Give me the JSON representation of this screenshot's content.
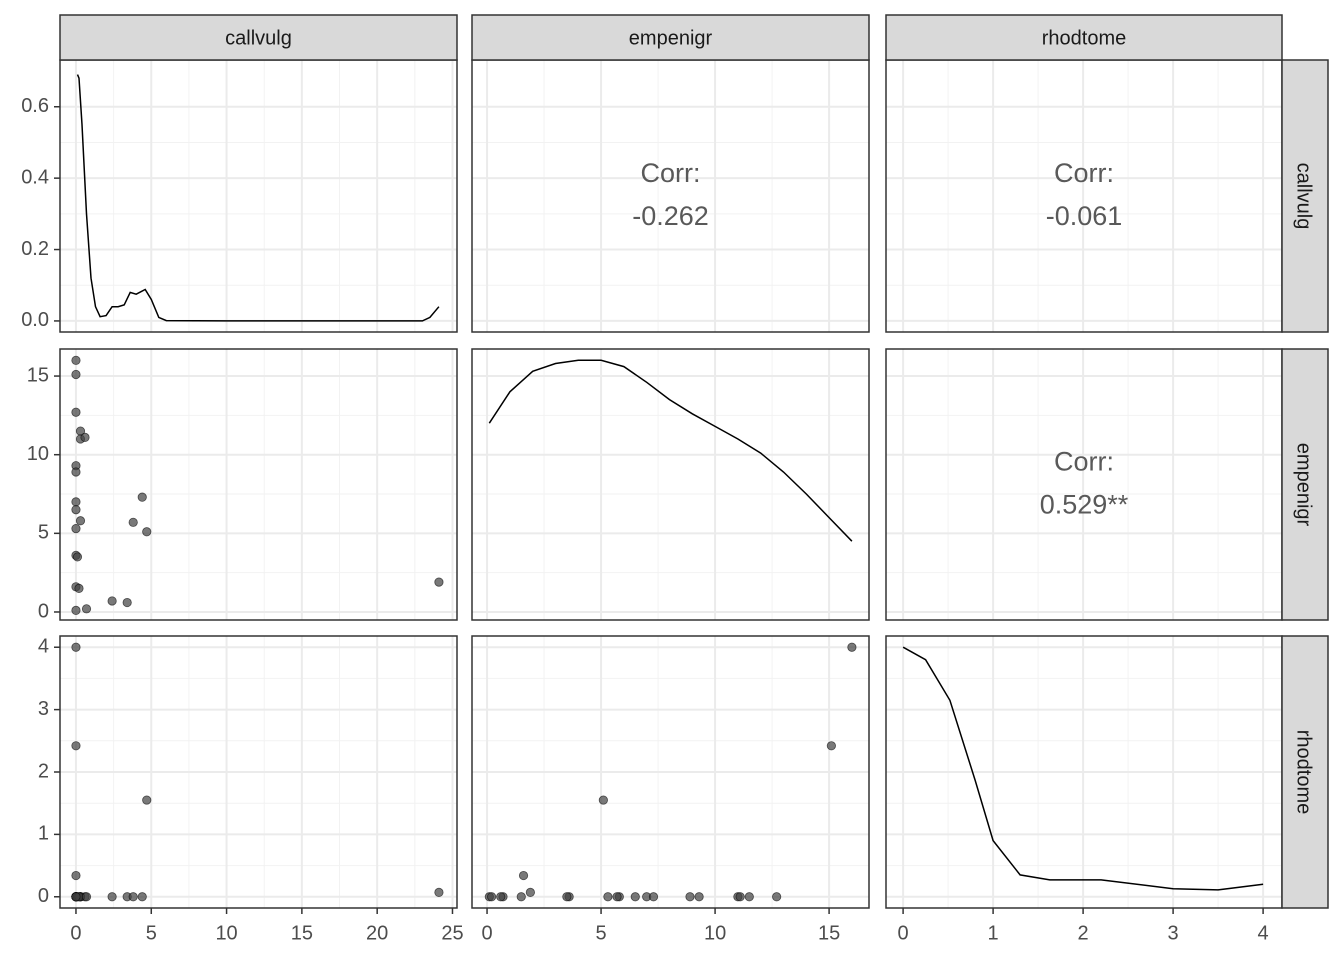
{
  "chart_data": {
    "type": "pairs",
    "variables": [
      "callvulg",
      "empenigr",
      "rhodtome"
    ],
    "observations": {
      "callvulg": [
        0,
        0,
        0,
        0.3,
        0.3,
        0.6,
        0,
        0,
        0,
        0,
        0.3,
        0,
        0,
        0.1,
        0,
        0.2,
        0,
        0.7,
        2.4,
        3.4,
        3.8,
        4.4,
        4.7,
        24.1
      ],
      "empenigr": [
        16,
        15.1,
        12.7,
        11.5,
        11.0,
        11.1,
        9.3,
        8.9,
        7.0,
        6.5,
        5.8,
        5.3,
        3.6,
        3.5,
        1.6,
        1.5,
        0.1,
        0.2,
        0.7,
        0.6,
        5.7,
        7.3,
        5.1,
        1.9
      ],
      "rhodtome": [
        4,
        2.42,
        0,
        0,
        0,
        0,
        0,
        0,
        0,
        0,
        0,
        0,
        0,
        0,
        0.34,
        0,
        0,
        0,
        0,
        0,
        0,
        0,
        1.55,
        0.07
      ]
    },
    "densities": {
      "callvulg": {
        "x": [
          0.1,
          0.2,
          0.4,
          0.7,
          1.0,
          1.3,
          1.6,
          2.0,
          2.4,
          2.8,
          3.2,
          3.6,
          4.0,
          4.6,
          5.0,
          5.5,
          6,
          10,
          20,
          23,
          23.5,
          24.1
        ],
        "y": [
          0.69,
          0.68,
          0.55,
          0.3,
          0.12,
          0.04,
          0.012,
          0.015,
          0.04,
          0.04,
          0.045,
          0.08,
          0.075,
          0.088,
          0.06,
          0.01,
          0.001,
          0,
          0,
          0,
          0.01,
          0.04
        ]
      },
      "empenigr": {
        "x": [
          0.1,
          1,
          2,
          3,
          4,
          5,
          6,
          7,
          8,
          9,
          10,
          11,
          12,
          13,
          14,
          15,
          16
        ],
        "y": [
          12.0,
          14.0,
          15.3,
          15.8,
          16.0,
          16.0,
          15.6,
          14.6,
          13.5,
          12.6,
          11.8,
          11.0,
          10.1,
          8.9,
          7.5,
          6.0,
          4.5
        ]
      },
      "rhodtome": {
        "x": [
          0,
          0.25,
          0.52,
          0.8,
          1.0,
          1.3,
          1.63,
          2.2,
          3.0,
          3.5,
          4.0
        ],
        "y": [
          4.0,
          3.8,
          3.15,
          1.87,
          0.9,
          0.35,
          0.27,
          0.27,
          0.13,
          0.11,
          0.2
        ]
      }
    },
    "correlations": [
      {
        "x": "empenigr",
        "y": "callvulg",
        "label": "Corr:",
        "value": "-0.262"
      },
      {
        "x": "rhodtome",
        "y": "callvulg",
        "label": "Corr:",
        "value": "-0.061"
      },
      {
        "x": "rhodtome",
        "y": "empenigr",
        "label": "Corr:",
        "value": "0.529**"
      }
    ],
    "columns": [
      {
        "xlim": [
          -1.06,
          25.3
        ],
        "xticks": [
          0,
          5,
          10,
          15,
          20,
          25
        ]
      },
      {
        "xlim": [
          -0.66,
          16.75
        ],
        "xticks": [
          0,
          5,
          10,
          15
        ]
      },
      {
        "xlim": [
          -0.19,
          4.21
        ],
        "xticks": [
          0,
          1,
          2,
          3,
          4
        ]
      }
    ],
    "rows": [
      {
        "ylim": [
          -0.031,
          0.731
        ],
        "yticks": [
          {
            "value": 0,
            "label": "0.0"
          },
          0.2,
          0.4,
          0.6
        ]
      },
      {
        "ylim": [
          -0.51,
          16.72
        ],
        "yticks": [
          0,
          5,
          10,
          15
        ]
      },
      {
        "ylim": [
          -0.18,
          4.18
        ],
        "yticks": [
          0,
          1,
          2,
          3,
          4
        ]
      }
    ],
    "grid": true,
    "point_color": "#404040",
    "line_color": "#000000"
  }
}
